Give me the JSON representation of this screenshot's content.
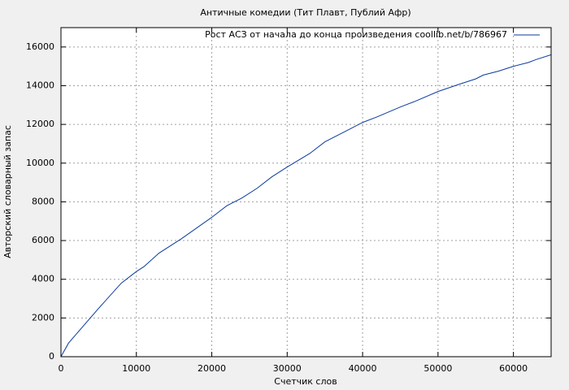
{
  "chart_data": {
    "type": "line",
    "title": "Античные комедии (Тит Плавт, Публий Афр)",
    "x_label": "Счетчик слов",
    "y_label": "Авторский словарный запас",
    "x": [
      0,
      1000,
      2000,
      5000,
      8000,
      10000,
      11000,
      13000,
      16000,
      20000,
      22000,
      24000,
      26000,
      28000,
      30000,
      33000,
      35000,
      38000,
      40000,
      42000,
      45000,
      47000,
      50000,
      53000,
      55000,
      56000,
      58000,
      60000,
      62000,
      63000,
      65000
    ],
    "series": [
      {
        "name": "Рост АСЗ от начала до конца произведения coollib.net/b/786967",
        "color": "#0b3a9e",
        "values": [
          0,
          700,
          1150,
          2500,
          3800,
          4400,
          4650,
          5350,
          6100,
          7200,
          7800,
          8200,
          8700,
          9300,
          9800,
          10500,
          11100,
          11700,
          12100,
          12400,
          12900,
          13200,
          13700,
          14100,
          14350,
          14550,
          14750,
          15000,
          15200,
          15350,
          15600
        ]
      }
    ],
    "xlim": [
      0,
      65000
    ],
    "ylim": [
      0,
      17000
    ],
    "xticks": [
      0,
      10000,
      20000,
      30000,
      40000,
      50000,
      60000
    ],
    "yticks": [
      0,
      2000,
      4000,
      6000,
      8000,
      10000,
      12000,
      14000,
      16000
    ],
    "grid": true,
    "legend": "upper right"
  }
}
